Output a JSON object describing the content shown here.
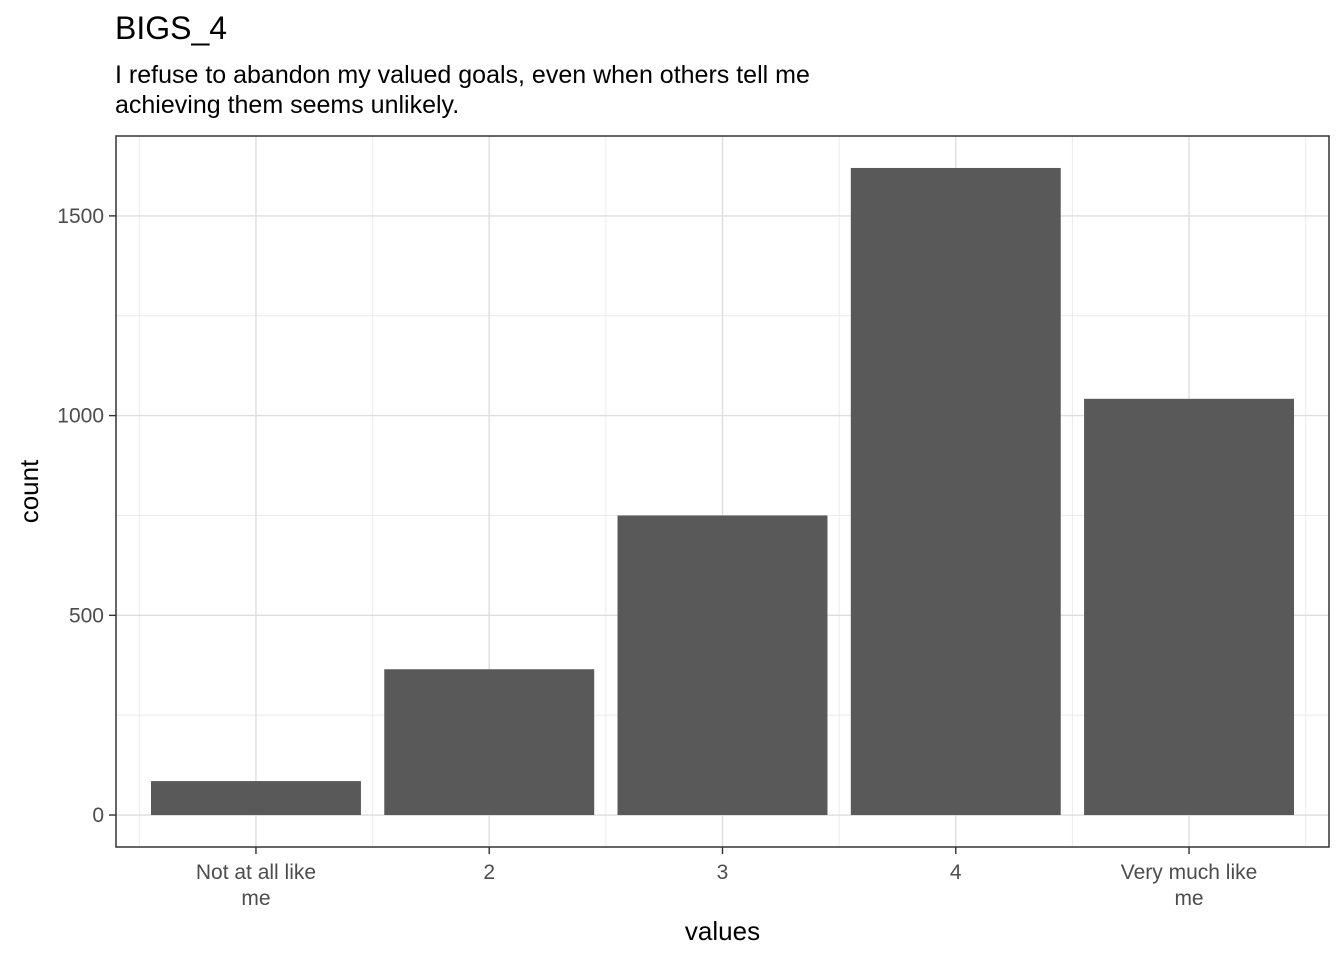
{
  "chart_data": {
    "type": "bar",
    "title": "BIGS_4",
    "subtitle_lines": [
      "I refuse to abandon my valued goals, even when others tell me",
      "achieving them seems unlikely."
    ],
    "xlabel": "values",
    "ylabel": "count",
    "categories": [
      [
        "Not at all like",
        "me"
      ],
      [
        "2"
      ],
      [
        "3"
      ],
      [
        "4"
      ],
      [
        "Very much like",
        "me"
      ]
    ],
    "values": [
      85,
      365,
      750,
      1620,
      1042
    ],
    "ylim": [
      -80,
      1700
    ],
    "yticks": [
      0,
      500,
      1000,
      1500
    ],
    "yticks_minor": [
      250,
      750,
      1250
    ],
    "bar_color": "#595959",
    "grid": true,
    "theme": "bw"
  }
}
